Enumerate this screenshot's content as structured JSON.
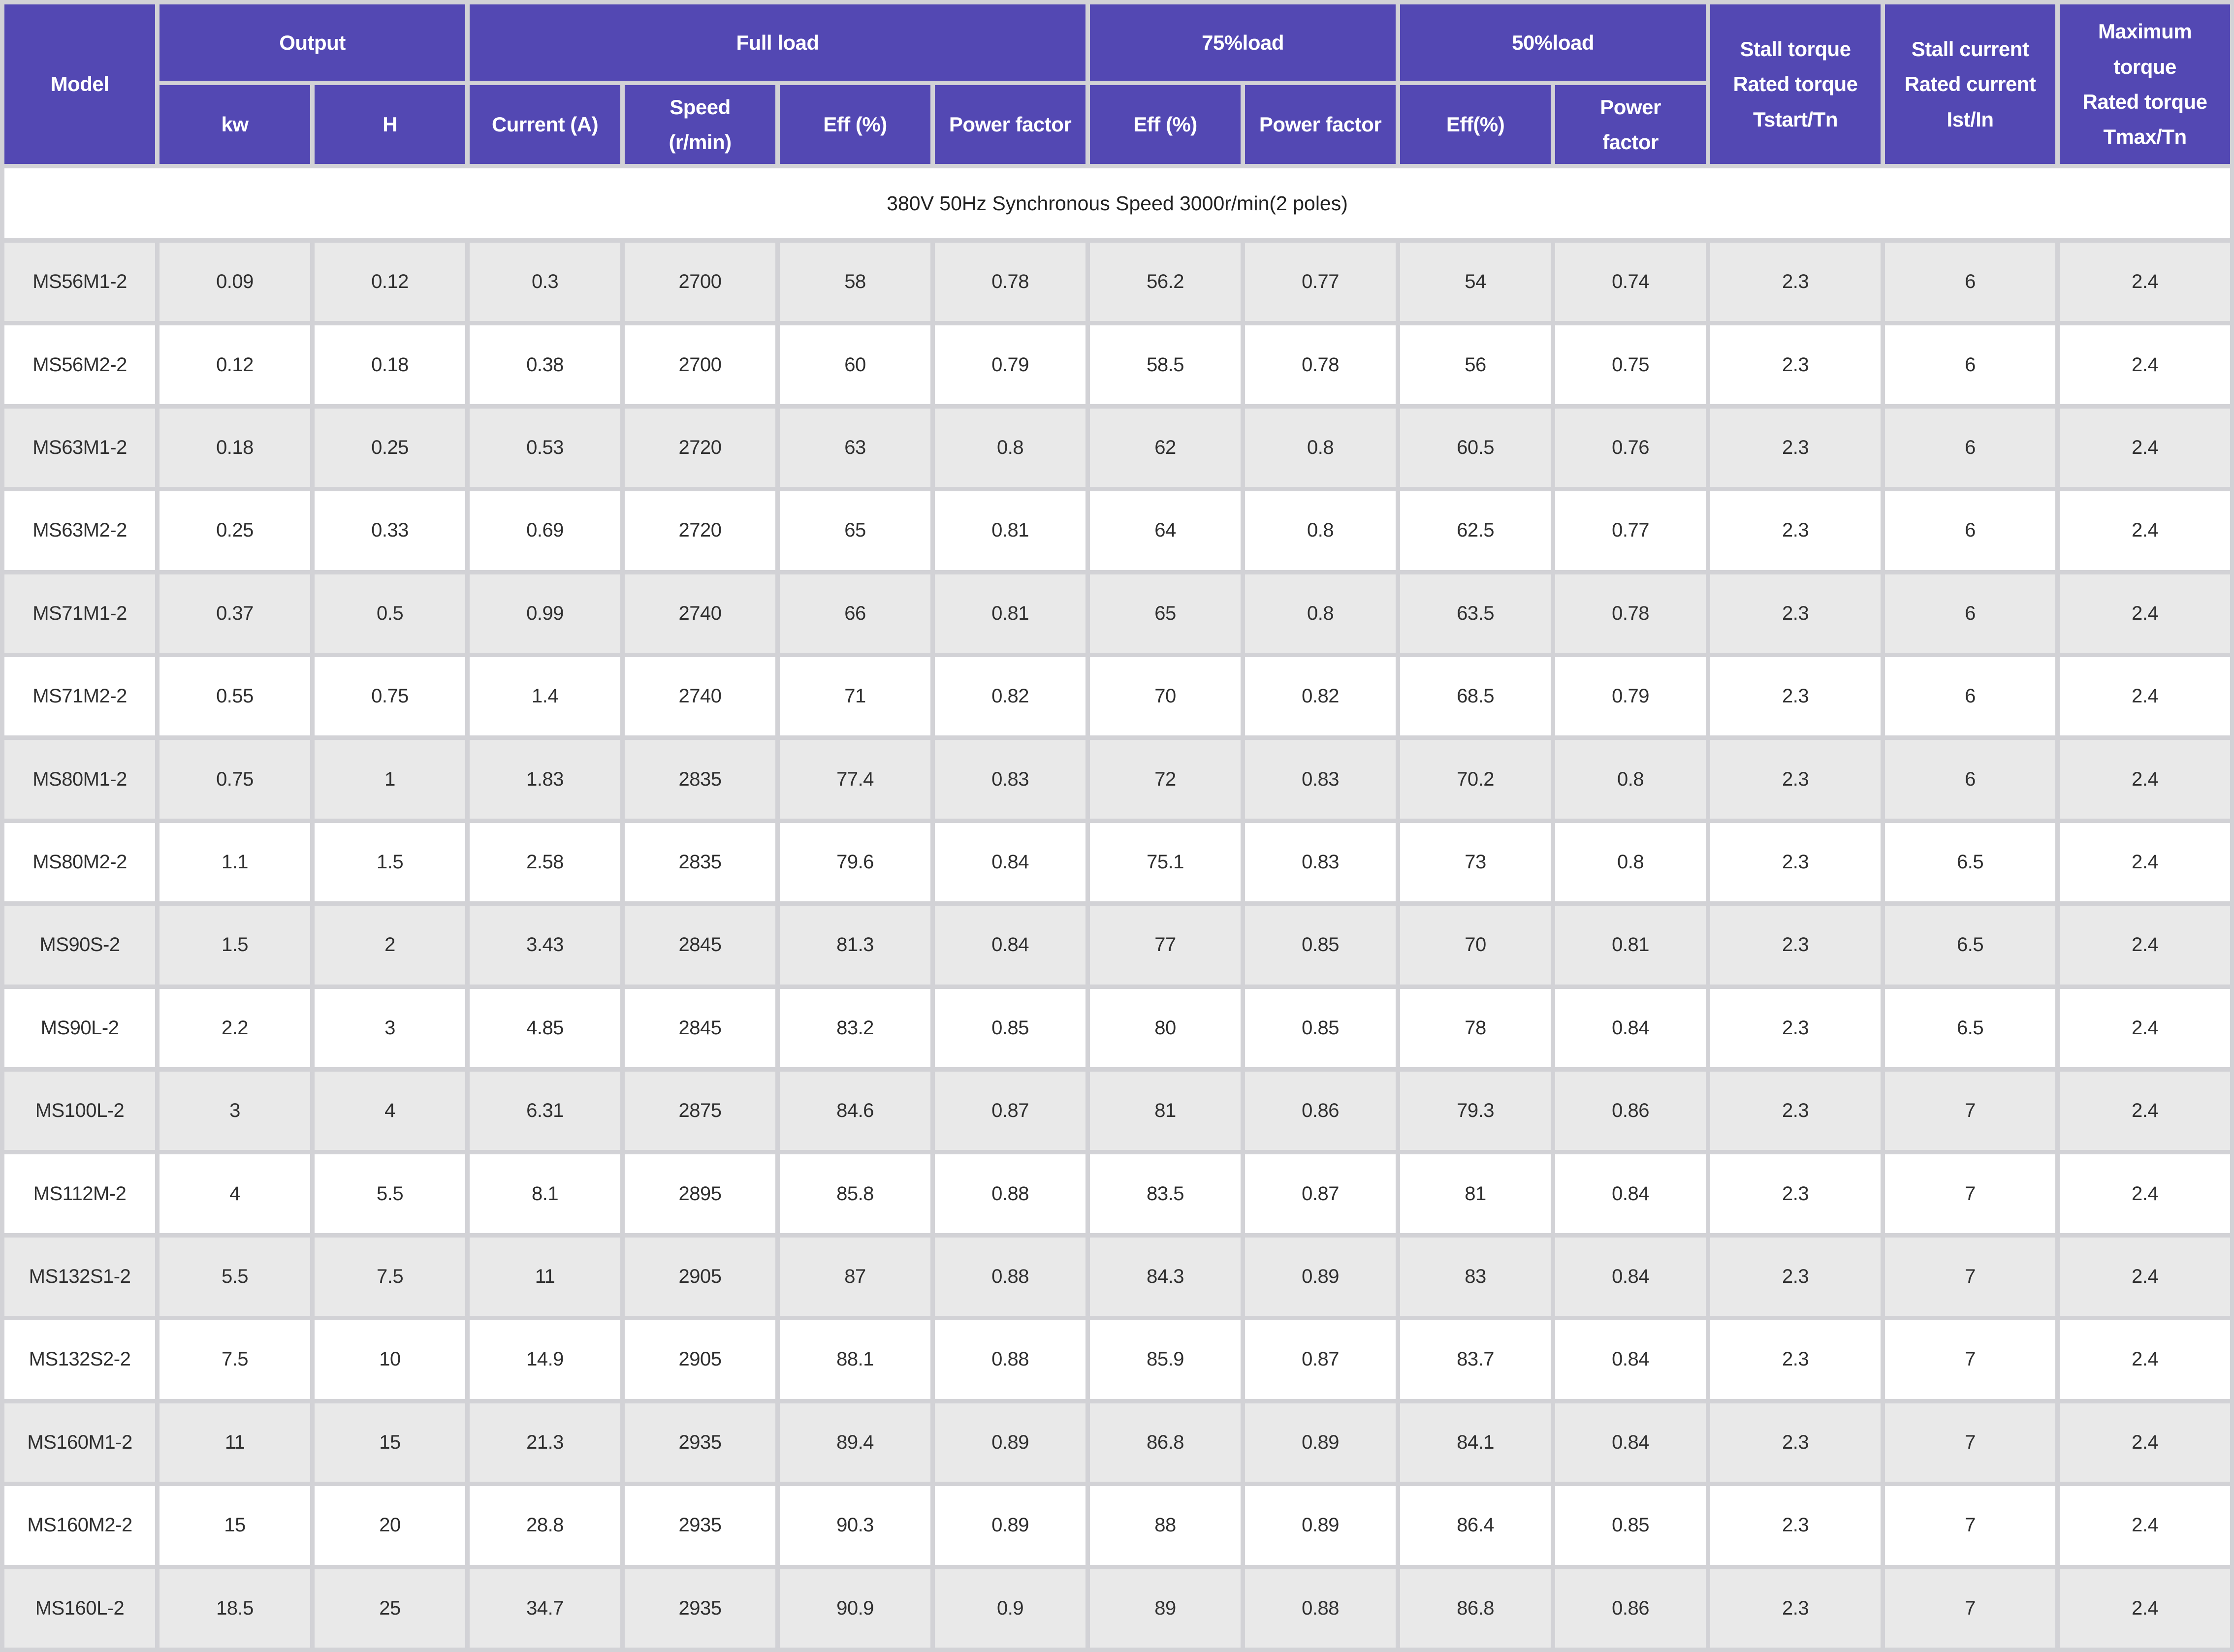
{
  "table": {
    "header": {
      "model": "Model",
      "groups": [
        {
          "label": "Output"
        },
        {
          "label": "Full load"
        },
        {
          "label": "75%load"
        },
        {
          "label": "50%load"
        }
      ],
      "sub_labels": [
        "kw",
        "H",
        "Current (A)",
        "Speed\n(r/min)",
        "Eff (%)",
        "Power factor",
        "Eff (%)",
        "Power factor",
        "Eff(%)",
        "Power\nfactor"
      ],
      "stall_torque": "Stall torque\nRated torque\nTstart/Tn",
      "stall_current": "Stall current\nRated current\nIst/In",
      "max_torque": "Maximum\ntorque\nRated torque\nTmax/Tn"
    },
    "subtitle": "380V 50Hz Synchronous Speed 3000r/min(2 poles)",
    "rows": [
      [
        "MS56M1-2",
        "0.09",
        "0.12",
        "0.3",
        "2700",
        "58",
        "0.78",
        "56.2",
        "0.77",
        "54",
        "0.74",
        "2.3",
        "6",
        "2.4"
      ],
      [
        "MS56M2-2",
        "0.12",
        "0.18",
        "0.38",
        "2700",
        "60",
        "0.79",
        "58.5",
        "0.78",
        "56",
        "0.75",
        "2.3",
        "6",
        "2.4"
      ],
      [
        "MS63M1-2",
        "0.18",
        "0.25",
        "0.53",
        "2720",
        "63",
        "0.8",
        "62",
        "0.8",
        "60.5",
        "0.76",
        "2.3",
        "6",
        "2.4"
      ],
      [
        "MS63M2-2",
        "0.25",
        "0.33",
        "0.69",
        "2720",
        "65",
        "0.81",
        "64",
        "0.8",
        "62.5",
        "0.77",
        "2.3",
        "6",
        "2.4"
      ],
      [
        "MS71M1-2",
        "0.37",
        "0.5",
        "0.99",
        "2740",
        "66",
        "0.81",
        "65",
        "0.8",
        "63.5",
        "0.78",
        "2.3",
        "6",
        "2.4"
      ],
      [
        "MS71M2-2",
        "0.55",
        "0.75",
        "1.4",
        "2740",
        "71",
        "0.82",
        "70",
        "0.82",
        "68.5",
        "0.79",
        "2.3",
        "6",
        "2.4"
      ],
      [
        "MS80M1-2",
        "0.75",
        "1",
        "1.83",
        "2835",
        "77.4",
        "0.83",
        "72",
        "0.83",
        "70.2",
        "0.8",
        "2.3",
        "6",
        "2.4"
      ],
      [
        "MS80M2-2",
        "1.1",
        "1.5",
        "2.58",
        "2835",
        "79.6",
        "0.84",
        "75.1",
        "0.83",
        "73",
        "0.8",
        "2.3",
        "6.5",
        "2.4"
      ],
      [
        "MS90S-2",
        "1.5",
        "2",
        "3.43",
        "2845",
        "81.3",
        "0.84",
        "77",
        "0.85",
        "70",
        "0.81",
        "2.3",
        "6.5",
        "2.4"
      ],
      [
        "MS90L-2",
        "2.2",
        "3",
        "4.85",
        "2845",
        "83.2",
        "0.85",
        "80",
        "0.85",
        "78",
        "0.84",
        "2.3",
        "6.5",
        "2.4"
      ],
      [
        "MS100L-2",
        "3",
        "4",
        "6.31",
        "2875",
        "84.6",
        "0.87",
        "81",
        "0.86",
        "79.3",
        "0.86",
        "2.3",
        "7",
        "2.4"
      ],
      [
        "MS112M-2",
        "4",
        "5.5",
        "8.1",
        "2895",
        "85.8",
        "0.88",
        "83.5",
        "0.87",
        "81",
        "0.84",
        "2.3",
        "7",
        "2.4"
      ],
      [
        "MS132S1-2",
        "5.5",
        "7.5",
        "11",
        "2905",
        "87",
        "0.88",
        "84.3",
        "0.89",
        "83",
        "0.84",
        "2.3",
        "7",
        "2.4"
      ],
      [
        "MS132S2-2",
        "7.5",
        "10",
        "14.9",
        "2905",
        "88.1",
        "0.88",
        "85.9",
        "0.87",
        "83.7",
        "0.84",
        "2.3",
        "7",
        "2.4"
      ],
      [
        "MS160M1-2",
        "11",
        "15",
        "21.3",
        "2935",
        "89.4",
        "0.89",
        "86.8",
        "0.89",
        "84.1",
        "0.84",
        "2.3",
        "7",
        "2.4"
      ],
      [
        "MS160M2-2",
        "15",
        "20",
        "28.8",
        "2935",
        "90.3",
        "0.89",
        "88",
        "0.89",
        "86.4",
        "0.85",
        "2.3",
        "7",
        "2.4"
      ],
      [
        "MS160L-2",
        "18.5",
        "25",
        "34.7",
        "2935",
        "90.9",
        "0.9",
        "89",
        "0.88",
        "86.8",
        "0.86",
        "2.3",
        "7",
        "2.4"
      ]
    ]
  },
  "colors": {
    "header_bg": "#5348b3",
    "header_text": "#ffffff",
    "row_alt_bg": "#e9e9e9",
    "row_bg": "#ffffff",
    "grid_bg": "#d2d2d6",
    "body_text": "#2f2f2f"
  }
}
